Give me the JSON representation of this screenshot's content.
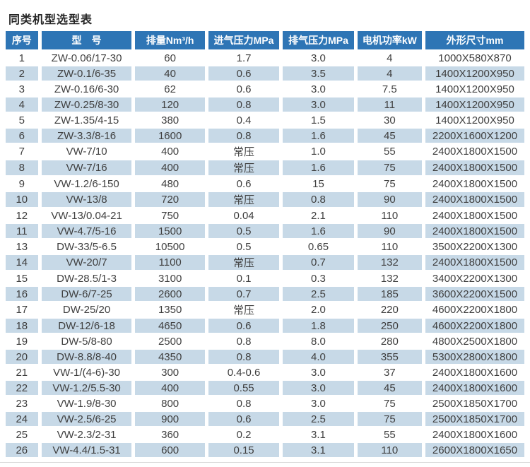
{
  "page": {
    "title": "同类机型选型表"
  },
  "colors": {
    "header_bg": "#2e75b5",
    "header_text": "#ffffff",
    "stripe_bg": "#c7d9e7",
    "body_text": "#3f3f3f",
    "title_text": "#262626"
  },
  "table": {
    "headers": [
      "序号",
      "型　号",
      "排量Nm³/h",
      "进气压力MPa",
      "排气压力MPa",
      "电机功率kW",
      "外形尺寸mm"
    ],
    "rows": [
      [
        "1",
        "ZW-0.06/17-30",
        "60",
        "1.7",
        "3.0",
        "4",
        "1000X580X870"
      ],
      [
        "2",
        "ZW-0.1/6-35",
        "40",
        "0.6",
        "3.5",
        "4",
        "1400X1200X950"
      ],
      [
        "3",
        "ZW-0.16/6-30",
        "62",
        "0.6",
        "3.0",
        "7.5",
        "1400X1200X950"
      ],
      [
        "4",
        "ZW-0.25/8-30",
        "120",
        "0.8",
        "3.0",
        "11",
        "1400X1200X950"
      ],
      [
        "5",
        "ZW-1.35/4-15",
        "380",
        "0.4",
        "1.5",
        "30",
        "1400X1200X950"
      ],
      [
        "6",
        "ZW-3.3/8-16",
        "1600",
        "0.8",
        "1.6",
        "45",
        "2200X1600X1200"
      ],
      [
        "7",
        "VW-7/10",
        "400",
        "常压",
        "1.0",
        "55",
        "2400X1800X1500"
      ],
      [
        "8",
        "VW-7/16",
        "400",
        "常压",
        "1.6",
        "75",
        "2400X1800X1500"
      ],
      [
        "9",
        "VW-1.2/6-150",
        "480",
        "0.6",
        "15",
        "75",
        "2400X1800X1500"
      ],
      [
        "10",
        "VW-13/8",
        "720",
        "常压",
        "0.8",
        "90",
        "2400X1800X1500"
      ],
      [
        "12",
        "VW-13/0.04-21",
        "750",
        "0.04",
        "2.1",
        "110",
        "2400X1800X1500"
      ],
      [
        "11",
        "VW-4.7/5-16",
        "1500",
        "0.5",
        "1.6",
        "90",
        "2400X1800X1500"
      ],
      [
        "13",
        "DW-33/5-6.5",
        "10500",
        "0.5",
        "0.65",
        "110",
        "3500X2200X1300"
      ],
      [
        "14",
        "VW-20/7",
        "1100",
        "常压",
        "0.7",
        "132",
        "2400X1800X1500"
      ],
      [
        "15",
        "DW-28.5/1-3",
        "3100",
        "0.1",
        "0.3",
        "132",
        "3400X2200X1300"
      ],
      [
        "16",
        "DW-6/7-25",
        "2600",
        "0.7",
        "2.5",
        "185",
        "3600X2200X1500"
      ],
      [
        "17",
        "DW-25/20",
        "1350",
        "常压",
        "2.0",
        "220",
        "4600X2200X1800"
      ],
      [
        "18",
        "DW-12/6-18",
        "4650",
        "0.6",
        "1.8",
        "250",
        "4600X2200X1800"
      ],
      [
        "19",
        "DW-5/8-80",
        "2500",
        "0.8",
        "8.0",
        "280",
        "4800X2500X1800"
      ],
      [
        "20",
        "DW-8.8/8-40",
        "4350",
        "0.8",
        "4.0",
        "355",
        "5300X2800X1800"
      ],
      [
        "21",
        "VW-1/(4-6)-30",
        "300",
        "0.4-0.6",
        "3.0",
        "37",
        "2400X1800X1600"
      ],
      [
        "22",
        "VW-1.2/5.5-30",
        "400",
        "0.55",
        "3.0",
        "45",
        "2400X1800X1600"
      ],
      [
        "23",
        "VW-1.9/8-30",
        "800",
        "0.8",
        "3.0",
        "75",
        "2500X1850X1700"
      ],
      [
        "24",
        "VW-2.5/6-25",
        "900",
        "0.6",
        "2.5",
        "75",
        "2500X1850X1700"
      ],
      [
        "25",
        "VW-2.3/2-31",
        "360",
        "0.2",
        "3.1",
        "55",
        "2400X1800X1600"
      ],
      [
        "26",
        "VW-4.4/1.5-31",
        "600",
        "0.15",
        "3.1",
        "110",
        "2600X1800X1650"
      ]
    ]
  }
}
